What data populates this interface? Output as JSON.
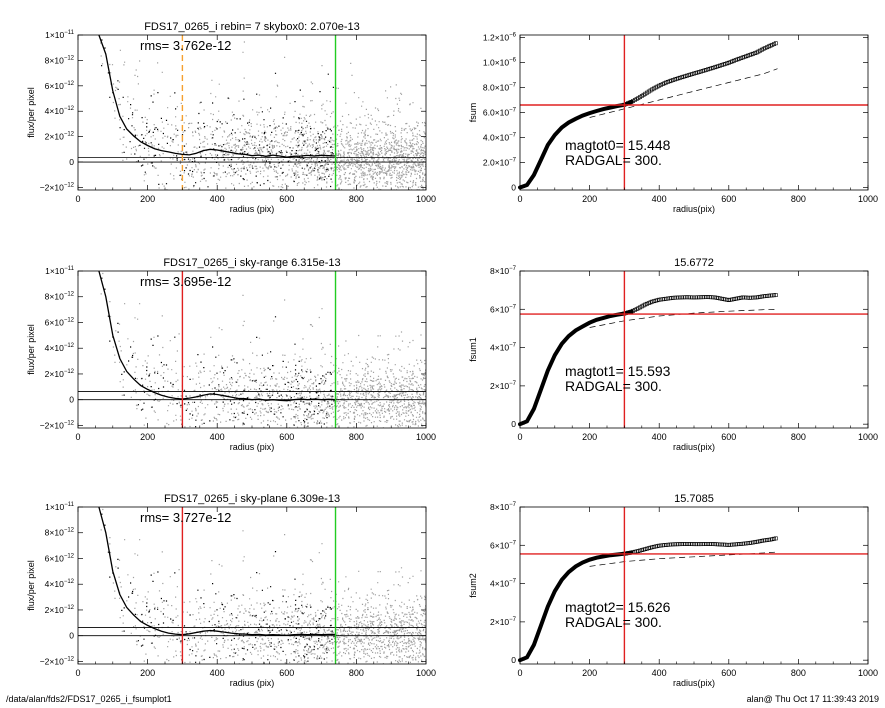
{
  "footer": {
    "path": "/data/alan/fds2/FDS17_0265_i_fsumplot1",
    "stamp": "alan@  Thu Oct 17 11:39:43 2019"
  },
  "colors": {
    "scatter_light": "#a0a0a0",
    "scatter_dark": "#000000",
    "profile": "#000000",
    "vline_orange": "#f5a030",
    "vline_red": "#e02020",
    "vline_green": "#22cc22",
    "hline_red": "#e02020"
  },
  "chart_data": [
    {
      "id": "flux1",
      "type": "scatter",
      "title": "FDS17_0265_i rebin= 7    skybox0:  2.070e-13",
      "annotation": "rms= 3.762e-12",
      "xlabel": "radius (pix)",
      "ylabel": "flux/per pixel",
      "xlim": [
        0,
        1000
      ],
      "ylim": [
        -2.2e-12,
        1e-11
      ],
      "xticks": [
        "0",
        "200",
        "400",
        "600",
        "800",
        "1000"
      ],
      "yticks": [
        {
          "value": -2e-12,
          "mant": "−2×10",
          "exp": "−12"
        },
        {
          "value": 0,
          "mant": "0",
          "exp": ""
        },
        {
          "value": 2e-12,
          "mant": "2×10",
          "exp": "−12"
        },
        {
          "value": 4e-12,
          "mant": "4×10",
          "exp": "−12"
        },
        {
          "value": 6e-12,
          "mant": "6×10",
          "exp": "−12"
        },
        {
          "value": 8e-12,
          "mant": "8×10",
          "exp": "−12"
        },
        {
          "value": 1e-11,
          "mant": "1×10",
          "exp": "−11"
        }
      ],
      "hlines": [
        0,
        3.5e-13
      ],
      "vlines": [
        {
          "x": 300,
          "color": "orange",
          "dashed": true
        },
        {
          "x": 740,
          "color": "green",
          "dashed": false
        }
      ],
      "profile": {
        "r": [
          60,
          80,
          100,
          120,
          140,
          160,
          180,
          200,
          220,
          240,
          260,
          280,
          300,
          320,
          340,
          360,
          380,
          400,
          420,
          440,
          460,
          480,
          500,
          520,
          540,
          560,
          580,
          600,
          620,
          640,
          660,
          680,
          700,
          720,
          740
        ],
        "flux": [
          1e-11,
          8.5e-12,
          5.6e-12,
          3.6e-12,
          2.6e-12,
          2.05e-12,
          1.6e-12,
          1.3e-12,
          1.05e-12,
          9e-13,
          8e-13,
          6.8e-13,
          6e-13,
          5.6e-13,
          7e-13,
          9e-13,
          1e-12,
          9.5e-13,
          8.5e-13,
          7.5e-13,
          6.5e-13,
          6e-13,
          5e-13,
          5.5e-13,
          4.5e-13,
          5.5e-13,
          4.8e-13,
          3.8e-13,
          4.5e-13,
          4.8e-13,
          5.2e-13,
          4.8e-13,
          5.3e-13,
          5e-13,
          4.8e-13
        ]
      }
    },
    {
      "id": "flux2",
      "type": "scatter",
      "title": "FDS17_0265_i sky-range  6.315e-13",
      "annotation": "rms= 3.695e-12",
      "xlabel": "radius (pix)",
      "ylabel": "flux/per pixel",
      "xlim": [
        0,
        1000
      ],
      "ylim": [
        -2.2e-12,
        1e-11
      ],
      "xticks": [
        "0",
        "200",
        "400",
        "600",
        "800",
        "1000"
      ],
      "yticks": [
        {
          "value": -2e-12,
          "mant": "−2×10",
          "exp": "−12"
        },
        {
          "value": 0,
          "mant": "0",
          "exp": ""
        },
        {
          "value": 2e-12,
          "mant": "2×10",
          "exp": "−12"
        },
        {
          "value": 4e-12,
          "mant": "4×10",
          "exp": "−12"
        },
        {
          "value": 6e-12,
          "mant": "6×10",
          "exp": "−12"
        },
        {
          "value": 8e-12,
          "mant": "8×10",
          "exp": "−12"
        },
        {
          "value": 1e-11,
          "mant": "1×10",
          "exp": "−11"
        }
      ],
      "hlines": [
        0,
        6.3e-13
      ],
      "vlines": [
        {
          "x": 300,
          "color": "red",
          "dashed": false
        },
        {
          "x": 740,
          "color": "green",
          "dashed": false
        }
      ],
      "profile": {
        "r": [
          60,
          80,
          100,
          120,
          140,
          160,
          180,
          200,
          220,
          240,
          260,
          280,
          300,
          320,
          340,
          360,
          380,
          400,
          420,
          440,
          460,
          480,
          500,
          520,
          540,
          560,
          580,
          600,
          620,
          640,
          660,
          680,
          700,
          720,
          740
        ],
        "flux": [
          1e-11,
          8e-12,
          5e-12,
          3.2e-12,
          2.2e-12,
          1.6e-12,
          1.1e-12,
          8e-13,
          5.5e-13,
          3.5e-13,
          2e-13,
          1e-13,
          5e-14,
          1.2e-13,
          2.2e-13,
          3.5e-13,
          4.5e-13,
          4e-13,
          3e-13,
          2e-13,
          1e-13,
          8e-14,
          0,
          5e-14,
          -5e-14,
          0,
          -5e-14,
          -8e-14,
          0,
          5e-14,
          0,
          5e-14,
          0,
          3e-14,
          0
        ]
      }
    },
    {
      "id": "flux3",
      "type": "scatter",
      "title": "FDS17_0265_i sky-plane  6.309e-13",
      "annotation": "rms= 3.727e-12",
      "xlabel": "radius (pix)",
      "ylabel": "flux/per pixel",
      "xlim": [
        0,
        1000
      ],
      "ylim": [
        -2.2e-12,
        1e-11
      ],
      "xticks": [
        "0",
        "200",
        "400",
        "600",
        "800",
        "1000"
      ],
      "yticks": [
        {
          "value": -2e-12,
          "mant": "−2×10",
          "exp": "−12"
        },
        {
          "value": 0,
          "mant": "0",
          "exp": ""
        },
        {
          "value": 2e-12,
          "mant": "2×10",
          "exp": "−12"
        },
        {
          "value": 4e-12,
          "mant": "4×10",
          "exp": "−12"
        },
        {
          "value": 6e-12,
          "mant": "6×10",
          "exp": "−12"
        },
        {
          "value": 8e-12,
          "mant": "8×10",
          "exp": "−12"
        },
        {
          "value": 1e-11,
          "mant": "1×10",
          "exp": "−11"
        }
      ],
      "hlines": [
        0,
        6.3e-13
      ],
      "vlines": [
        {
          "x": 300,
          "color": "red",
          "dashed": false
        },
        {
          "x": 740,
          "color": "green",
          "dashed": false
        }
      ],
      "profile": {
        "r": [
          60,
          80,
          100,
          120,
          140,
          160,
          180,
          200,
          220,
          240,
          260,
          280,
          300,
          320,
          340,
          360,
          380,
          400,
          420,
          440,
          460,
          480,
          500,
          520,
          540,
          560,
          580,
          600,
          620,
          640,
          660,
          680,
          700,
          720,
          740
        ],
        "flux": [
          1e-11,
          8e-12,
          5e-12,
          3.2e-12,
          2.2e-12,
          1.6e-12,
          1.1e-12,
          8e-13,
          5.5e-13,
          3.5e-13,
          2e-13,
          1.2e-13,
          8e-14,
          1.5e-13,
          2.5e-13,
          3.5e-13,
          4e-13,
          3.5e-13,
          2.8e-13,
          2e-13,
          1.5e-13,
          1.2e-13,
          8e-14,
          1e-13,
          5e-14,
          8e-14,
          5e-14,
          3e-14,
          8e-14,
          1e-13,
          8e-14,
          1e-13,
          8e-14,
          1e-13,
          1e-13
        ]
      }
    },
    {
      "id": "fsum0",
      "type": "line",
      "title": "",
      "ylabel": "fsum",
      "xlabel": "radius(pix)",
      "xlim": [
        0,
        1000
      ],
      "ylim": [
        -2e-08,
        1.22e-06
      ],
      "xticks": [
        "0",
        "200",
        "400",
        "600",
        "800",
        "1000"
      ],
      "yticks": [
        {
          "value": 0,
          "mant": "0",
          "exp": ""
        },
        {
          "value": 2e-07,
          "mant": "2.0×10",
          "exp": "−7"
        },
        {
          "value": 4e-07,
          "mant": "4.0×10",
          "exp": "−7"
        },
        {
          "value": 6e-07,
          "mant": "6.0×10",
          "exp": "−7"
        },
        {
          "value": 8e-07,
          "mant": "8.0×10",
          "exp": "−7"
        },
        {
          "value": 1e-06,
          "mant": "1.0×10",
          "exp": "−6"
        },
        {
          "value": 1.2e-06,
          "mant": "1.2×10",
          "exp": "−6"
        }
      ],
      "annotations": [
        "magtot0=  15.448",
        "RADGAL=    300."
      ],
      "vline": 300,
      "hline": 6.6e-07,
      "curve": {
        "x": [
          0,
          20,
          40,
          60,
          80,
          100,
          120,
          140,
          160,
          180,
          200,
          220,
          240,
          260,
          280,
          300,
          320,
          340,
          360,
          380,
          400,
          420,
          440,
          460,
          480,
          500,
          520,
          540,
          560,
          580,
          600,
          620,
          640,
          660,
          680,
          700,
          720,
          740
        ],
        "y": [
          0,
          2e-08,
          1e-07,
          2.2e-07,
          3.4e-07,
          4.2e-07,
          4.8e-07,
          5.2e-07,
          5.5e-07,
          5.75e-07,
          5.95e-07,
          6.12e-07,
          6.27e-07,
          6.4e-07,
          6.52e-07,
          6.62e-07,
          6.85e-07,
          7.15e-07,
          7.5e-07,
          7.85e-07,
          8.15e-07,
          8.4e-07,
          8.6e-07,
          8.78e-07,
          8.95e-07,
          9.12e-07,
          9.28e-07,
          9.45e-07,
          9.62e-07,
          9.8e-07,
          9.98e-07,
          1.02e-06,
          1.04e-06,
          1.06e-06,
          1.08e-06,
          1.11e-06,
          1.135e-06,
          1.16e-06
        ]
      },
      "dashed": {
        "x": [
          200,
          300,
          400,
          500,
          600,
          700,
          740
        ],
        "y": [
          5.6e-07,
          6.3e-07,
          7e-07,
          7.7e-07,
          8.4e-07,
          9.1e-07,
          9.5e-07
        ]
      }
    },
    {
      "id": "fsum1",
      "type": "line",
      "title": "15.6772",
      "ylabel": "fsum1",
      "xlabel": "radius(pix)",
      "xlim": [
        0,
        1000
      ],
      "ylim": [
        -2e-08,
        8e-07
      ],
      "xticks": [
        "0",
        "200",
        "400",
        "600",
        "800",
        "1000"
      ],
      "yticks": [
        {
          "value": 0,
          "mant": "0",
          "exp": ""
        },
        {
          "value": 2e-07,
          "mant": "2×10",
          "exp": "−7"
        },
        {
          "value": 4e-07,
          "mant": "4×10",
          "exp": "−7"
        },
        {
          "value": 6e-07,
          "mant": "6×10",
          "exp": "−7"
        },
        {
          "value": 8e-07,
          "mant": "8×10",
          "exp": "−7"
        }
      ],
      "annotations": [
        "magtot1=  15.593",
        "RADGAL=    300."
      ],
      "vline": 300,
      "hline": 5.75e-07,
      "curve": {
        "x": [
          0,
          20,
          40,
          60,
          80,
          100,
          120,
          140,
          160,
          180,
          200,
          220,
          240,
          260,
          280,
          300,
          320,
          340,
          360,
          380,
          400,
          420,
          440,
          460,
          480,
          500,
          520,
          540,
          560,
          580,
          600,
          620,
          640,
          660,
          680,
          700,
          720,
          740
        ],
        "y": [
          0,
          1.5e-08,
          8e-08,
          1.8e-07,
          2.8e-07,
          3.6e-07,
          4.2e-07,
          4.6e-07,
          4.9e-07,
          5.1e-07,
          5.3e-07,
          5.45e-07,
          5.55e-07,
          5.65e-07,
          5.72e-07,
          5.78e-07,
          5.88e-07,
          6.05e-07,
          6.25e-07,
          6.4e-07,
          6.5e-07,
          6.55e-07,
          6.6e-07,
          6.62e-07,
          6.63e-07,
          6.62e-07,
          6.63e-07,
          6.64e-07,
          6.62e-07,
          6.55e-07,
          6.48e-07,
          6.55e-07,
          6.62e-07,
          6.6e-07,
          6.62e-07,
          6.68e-07,
          6.72e-07,
          6.75e-07
        ]
      },
      "dashed": {
        "x": [
          200,
          300,
          400,
          500,
          600,
          700,
          740
        ],
        "y": [
          5.05e-07,
          5.4e-07,
          5.65e-07,
          5.8e-07,
          5.9e-07,
          5.98e-07,
          6e-07
        ]
      }
    },
    {
      "id": "fsum2",
      "type": "line",
      "title": "15.7085",
      "ylabel": "fsum2",
      "xlabel": "radius(pix)",
      "xlim": [
        0,
        1000
      ],
      "ylim": [
        -2e-08,
        8e-07
      ],
      "xticks": [
        "0",
        "200",
        "400",
        "600",
        "800",
        "1000"
      ],
      "yticks": [
        {
          "value": 0,
          "mant": "0",
          "exp": ""
        },
        {
          "value": 2e-07,
          "mant": "2×10",
          "exp": "−7"
        },
        {
          "value": 4e-07,
          "mant": "4×10",
          "exp": "−7"
        },
        {
          "value": 6e-07,
          "mant": "6×10",
          "exp": "−7"
        },
        {
          "value": 8e-07,
          "mant": "8×10",
          "exp": "−7"
        }
      ],
      "annotations": [
        "magtot2=  15.626",
        "RADGAL=    300."
      ],
      "vline": 300,
      "hline": 5.55e-07,
      "curve": {
        "x": [
          0,
          20,
          40,
          60,
          80,
          100,
          120,
          140,
          160,
          180,
          200,
          220,
          240,
          260,
          280,
          300,
          320,
          340,
          360,
          380,
          400,
          420,
          440,
          460,
          480,
          500,
          520,
          540,
          560,
          580,
          600,
          620,
          640,
          660,
          680,
          700,
          720,
          740
        ],
        "y": [
          0,
          1.5e-08,
          8e-08,
          1.8e-07,
          2.8e-07,
          3.6e-07,
          4.2e-07,
          4.6e-07,
          4.9e-07,
          5.1e-07,
          5.25e-07,
          5.35e-07,
          5.42e-07,
          5.48e-07,
          5.52e-07,
          5.56e-07,
          5.62e-07,
          5.7e-07,
          5.8e-07,
          5.9e-07,
          5.98e-07,
          6.02e-07,
          6.05e-07,
          6.06e-07,
          6.07e-07,
          6.06e-07,
          6.06e-07,
          6.07e-07,
          6.06e-07,
          6.04e-07,
          6.02e-07,
          6.05e-07,
          6.08e-07,
          6.12e-07,
          6.18e-07,
          6.25e-07,
          6.3e-07,
          6.38e-07
        ]
      },
      "dashed": {
        "x": [
          200,
          300,
          400,
          500,
          600,
          700,
          740
        ],
        "y": [
          4.9e-07,
          5.15e-07,
          5.3e-07,
          5.4e-07,
          5.5e-07,
          5.6e-07,
          5.65e-07
        ]
      }
    }
  ]
}
